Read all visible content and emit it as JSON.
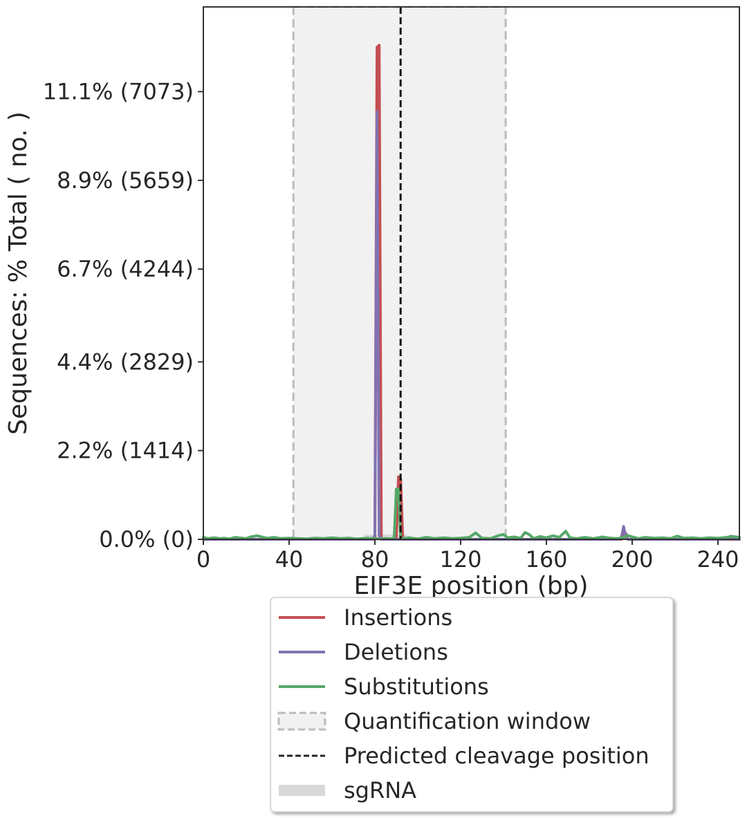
{
  "chart_data": {
    "type": "line",
    "xlabel": "EIF3E position (bp)",
    "ylabel": "Sequences: % Total ( no. )",
    "xlim": [
      0,
      250
    ],
    "ylim": [
      0,
      13.2
    ],
    "x_ticks": [
      0,
      40,
      80,
      120,
      160,
      200,
      240
    ],
    "y_ticks": [
      {
        "value": 0.0,
        "label": "0.0% (0)"
      },
      {
        "value": 2.2,
        "label": "2.2% (1414)"
      },
      {
        "value": 4.4,
        "label": "4.4% (2829)"
      },
      {
        "value": 6.7,
        "label": "6.7% (4244)"
      },
      {
        "value": 8.9,
        "label": "8.9% (5659)"
      },
      {
        "value": 11.1,
        "label": "11.1% (7073)"
      }
    ],
    "quantification_window": [
      42,
      141
    ],
    "predicted_cleavage_position": 92,
    "sgrna": [
      75,
      95
    ],
    "series": [
      {
        "name": "Insertions",
        "color": "#c44e52",
        "points": [
          [
            0,
            0
          ],
          [
            79,
            0
          ],
          [
            80,
            0
          ],
          [
            81,
            12.2
          ],
          [
            82,
            12.25
          ],
          [
            83,
            0
          ],
          [
            84,
            0
          ],
          [
            89,
            0
          ],
          [
            90,
            0
          ],
          [
            91,
            1.55
          ],
          [
            92,
            1.5
          ],
          [
            93,
            0
          ],
          [
            94,
            0
          ],
          [
            194,
            0
          ],
          [
            195,
            0
          ],
          [
            196,
            0.2
          ],
          [
            197,
            0.15
          ],
          [
            198,
            0
          ],
          [
            250,
            0
          ]
        ]
      },
      {
        "name": "Deletions",
        "color": "#8172b2",
        "points": [
          [
            0,
            0
          ],
          [
            79,
            0
          ],
          [
            80,
            0.1
          ],
          [
            81,
            10.6
          ],
          [
            82,
            0.1
          ],
          [
            83,
            0
          ],
          [
            145,
            0
          ],
          [
            146,
            0.05
          ],
          [
            147,
            0
          ],
          [
            194,
            0
          ],
          [
            195,
            0.05
          ],
          [
            196,
            0.32
          ],
          [
            197,
            0.05
          ],
          [
            198,
            0
          ],
          [
            245,
            0
          ],
          [
            246,
            0.08
          ],
          [
            247,
            0
          ],
          [
            250,
            0
          ]
        ]
      },
      {
        "name": "Substitutions",
        "color": "#55a868",
        "points": [
          [
            0,
            0.05
          ],
          [
            2,
            0.02
          ],
          [
            5,
            0.04
          ],
          [
            8,
            0.02
          ],
          [
            10,
            0.03
          ],
          [
            12,
            0.01
          ],
          [
            15,
            0.05
          ],
          [
            18,
            0.03
          ],
          [
            20,
            0.02
          ],
          [
            22,
            0.06
          ],
          [
            25,
            0.09
          ],
          [
            28,
            0.05
          ],
          [
            30,
            0.03
          ],
          [
            33,
            0.05
          ],
          [
            36,
            0.02
          ],
          [
            40,
            0.03
          ],
          [
            44,
            0.02
          ],
          [
            48,
            0.01
          ],
          [
            52,
            0.03
          ],
          [
            56,
            0.02
          ],
          [
            60,
            0.04
          ],
          [
            64,
            0.02
          ],
          [
            68,
            0.03
          ],
          [
            72,
            0.01
          ],
          [
            76,
            0.03
          ],
          [
            79,
            0.02
          ],
          [
            82,
            0.01
          ],
          [
            85,
            0.02
          ],
          [
            88,
            0.01
          ],
          [
            89,
            0.05
          ],
          [
            90,
            1.25
          ],
          [
            91,
            1.25
          ],
          [
            92,
            0.05
          ],
          [
            93,
            0.02
          ],
          [
            96,
            0.04
          ],
          [
            100,
            0.01
          ],
          [
            104,
            0.05
          ],
          [
            108,
            0.02
          ],
          [
            112,
            0.04
          ],
          [
            116,
            0.02
          ],
          [
            120,
            0.03
          ],
          [
            124,
            0.05
          ],
          [
            127,
            0.16
          ],
          [
            130,
            0.03
          ],
          [
            134,
            0.02
          ],
          [
            138,
            0.1
          ],
          [
            140,
            0.12
          ],
          [
            142,
            0.04
          ],
          [
            145,
            0.06
          ],
          [
            148,
            0.03
          ],
          [
            150,
            0.17
          ],
          [
            152,
            0.12
          ],
          [
            154,
            0.02
          ],
          [
            157,
            0.07
          ],
          [
            160,
            0.04
          ],
          [
            163,
            0.09
          ],
          [
            166,
            0.05
          ],
          [
            169,
            0.2
          ],
          [
            171,
            0.04
          ],
          [
            174,
            0.02
          ],
          [
            178,
            0.05
          ],
          [
            182,
            0.02
          ],
          [
            186,
            0.06
          ],
          [
            190,
            0.03
          ],
          [
            193,
            0.02
          ],
          [
            196,
            0.05
          ],
          [
            198,
            0.1
          ],
          [
            200,
            0.06
          ],
          [
            203,
            0.02
          ],
          [
            206,
            0.05
          ],
          [
            210,
            0.03
          ],
          [
            214,
            0.04
          ],
          [
            218,
            0.02
          ],
          [
            221,
            0.08
          ],
          [
            224,
            0.03
          ],
          [
            228,
            0.04
          ],
          [
            232,
            0.02
          ],
          [
            236,
            0.04
          ],
          [
            240,
            0.03
          ],
          [
            244,
            0.05
          ],
          [
            247,
            0.07
          ],
          [
            250,
            0.05
          ]
        ]
      }
    ],
    "legend": {
      "placement": "below",
      "entries": [
        {
          "label": "Insertions",
          "kind": "line",
          "color": "#c44e52"
        },
        {
          "label": "Deletions",
          "kind": "line",
          "color": "#8172b2"
        },
        {
          "label": "Substitutions",
          "kind": "line",
          "color": "#55a868"
        },
        {
          "label": "Quantification window",
          "kind": "box",
          "color": "#bbbbbb"
        },
        {
          "label": "Predicted cleavage position",
          "kind": "dashed",
          "color": "#262626"
        },
        {
          "label": "sgRNA",
          "kind": "bar",
          "color": "#d8d8d8"
        }
      ]
    }
  }
}
